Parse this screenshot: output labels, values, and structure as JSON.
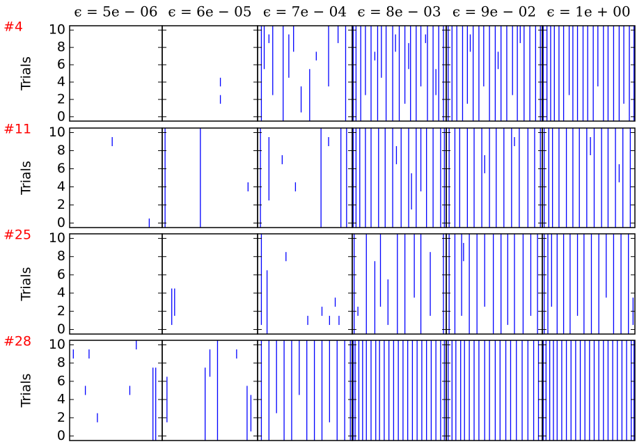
{
  "chart_data": {
    "type": "eventplot",
    "ylabel": "Trials",
    "color": "#0000ff",
    "label_color": "#ff0000",
    "xlim": [
      0,
      100
    ],
    "ylim": [
      -0.5,
      10.5
    ],
    "yticks": [
      0,
      2,
      4,
      6,
      8,
      10
    ],
    "columns": [
      "ϵ = 5e − 06",
      "ϵ = 6e − 05",
      "ϵ = 7e − 04",
      "ϵ = 8e − 03",
      "ϵ = 9e − 02",
      "ϵ = 1e + 00"
    ],
    "rows": [
      {
        "label": "#4",
        "panels": [
          {
            "x": [],
            "from": [],
            "to": []
          },
          {
            "x": [
              61,
              61
            ],
            "from": [
              4,
              2
            ],
            "to": [
              4,
              2
            ]
          },
          {
            "x": [
              4,
              7,
              16,
              27,
              38,
              55,
              75,
              93,
              33,
              62,
              85,
              12,
              46
            ],
            "from": [
              0,
              6,
              3,
              0,
              8,
              0,
              4,
              0,
              5,
              7,
              9,
              9,
              1
            ],
            "to": [
              10,
              10,
              10,
              10,
              10,
              5,
              10,
              10,
              9,
              7,
              10,
              9,
              3
            ]
          },
          {
            "x": [
              1,
              4,
              9,
              14,
              20,
              27,
              31,
              36,
              43,
              50,
              56,
              62,
              68,
              73,
              80,
              86,
              92,
              97,
              24,
              46,
              60,
              78,
              89
            ],
            "from": [
              0,
              0,
              0,
              3,
              0,
              0,
              5,
              0,
              0,
              0,
              2,
              0,
              0,
              4,
              0,
              0,
              0,
              0,
              7,
              8,
              6,
              9,
              3
            ],
            "to": [
              10,
              10,
              10,
              10,
              10,
              10,
              10,
              10,
              10,
              10,
              10,
              10,
              10,
              10,
              10,
              10,
              10,
              10,
              7,
              9,
              8,
              9,
              5
            ]
          },
          {
            "x": [
              2,
              6,
              11,
              17,
              22,
              28,
              34,
              39,
              45,
              51,
              57,
              63,
              69,
              74,
              81,
              87,
              93,
              98,
              25,
              54,
              77
            ],
            "from": [
              0,
              0,
              0,
              0,
              2,
              0,
              0,
              4,
              0,
              0,
              0,
              0,
              3,
              0,
              0,
              0,
              0,
              0,
              8,
              6,
              9
            ],
            "to": [
              10,
              10,
              10,
              10,
              10,
              10,
              10,
              10,
              10,
              10,
              10,
              10,
              10,
              10,
              10,
              10,
              10,
              10,
              9,
              7,
              10
            ]
          },
          {
            "x": [
              1,
              5,
              9,
              13,
              18,
              23,
              29,
              33,
              38,
              44,
              49,
              55,
              60,
              66,
              71,
              77,
              83,
              88,
              94,
              99
            ],
            "from": [
              0,
              0,
              0,
              0,
              0,
              0,
              3,
              0,
              0,
              0,
              0,
              0,
              4,
              0,
              0,
              0,
              0,
              2,
              0,
              0
            ],
            "to": [
              10,
              10,
              10,
              10,
              10,
              10,
              10,
              10,
              10,
              10,
              10,
              10,
              10,
              10,
              10,
              10,
              10,
              10,
              10,
              10
            ]
          }
        ]
      },
      {
        "label": "#11",
        "panels": [
          {
            "x": [
              46,
              86
            ],
            "from": [
              9,
              0
            ],
            "to": [
              9,
              0
            ]
          },
          {
            "x": [
              3,
              40,
              90
            ],
            "from": [
              0,
              0,
              4
            ],
            "to": [
              10,
              10,
              4
            ]
          },
          {
            "x": [
              3,
              12,
              26,
              40,
              67,
              75,
              88,
              94
            ],
            "from": [
              0,
              3,
              7,
              4,
              0,
              9,
              0,
              0
            ],
            "to": [
              10,
              9,
              7,
              4,
              10,
              9,
              10,
              10
            ]
          },
          {
            "x": [
              1,
              4,
              8,
              14,
              20,
              28,
              35,
              43,
              52,
              60,
              68,
              73,
              79,
              86,
              94,
              98,
              47,
              63
            ],
            "from": [
              0,
              0,
              0,
              0,
              0,
              0,
              0,
              0,
              0,
              0,
              0,
              4,
              0,
              0,
              0,
              0,
              7,
              2
            ],
            "to": [
              10,
              10,
              10,
              10,
              10,
              10,
              10,
              10,
              10,
              10,
              10,
              10,
              10,
              10,
              10,
              10,
              8,
              5
            ]
          },
          {
            "x": [
              3,
              9,
              14,
              22,
              29,
              37,
              45,
              52,
              60,
              68,
              76,
              85,
              92,
              98,
              40,
              71
            ],
            "from": [
              0,
              0,
              0,
              0,
              0,
              0,
              0,
              0,
              0,
              0,
              0,
              0,
              0,
              0,
              6,
              9
            ],
            "to": [
              10,
              10,
              10,
              10,
              10,
              10,
              10,
              10,
              10,
              10,
              10,
              10,
              10,
              10,
              7,
              9
            ]
          },
          {
            "x": [
              2,
              7,
              11,
              18,
              26,
              33,
              40,
              48,
              56,
              64,
              71,
              79,
              87,
              95,
              52,
              83
            ],
            "from": [
              0,
              0,
              0,
              0,
              0,
              0,
              0,
              0,
              0,
              0,
              0,
              0,
              0,
              0,
              8,
              5
            ],
            "to": [
              10,
              10,
              10,
              10,
              10,
              10,
              10,
              10,
              10,
              10,
              10,
              10,
              10,
              10,
              9,
              6
            ]
          }
        ]
      },
      {
        "label": "#25",
        "panels": [
          {
            "x": [],
            "from": [],
            "to": []
          },
          {
            "x": [
              10,
              13
            ],
            "from": [
              1,
              2
            ],
            "to": [
              4,
              4
            ]
          },
          {
            "x": [
              4,
              10,
              30,
              68,
              76,
              82,
              86,
              53
            ],
            "from": [
              1,
              0,
              8,
              2,
              1,
              3,
              1,
              1
            ],
            "to": [
              10,
              6,
              8,
              2,
              1,
              3,
              1,
              1
            ]
          },
          {
            "x": [
              2,
              6,
              15,
              24,
              30,
              38,
              48,
              56,
              66,
              73,
              83,
              97
            ],
            "from": [
              0,
              2,
              0,
              0,
              3,
              1,
              0,
              0,
              4,
              0,
              2,
              0
            ],
            "to": [
              10,
              2,
              10,
              7,
              10,
              5,
              10,
              10,
              10,
              10,
              8,
              10
            ]
          },
          {
            "x": [
              3,
              9,
              16,
              24,
              32,
              40,
              49,
              57,
              64,
              71,
              80,
              88,
              95,
              18
            ],
            "from": [
              0,
              0,
              2,
              0,
              0,
              3,
              0,
              0,
              1,
              0,
              0,
              2,
              0,
              8
            ],
            "to": [
              10,
              10,
              10,
              10,
              10,
              10,
              10,
              10,
              10,
              10,
              10,
              10,
              10,
              9
            ]
          },
          {
            "x": [
              2,
              6,
              10,
              16,
              23,
              30,
              38,
              45,
              53,
              61,
              69,
              77,
              85,
              93,
              98
            ],
            "from": [
              0,
              0,
              3,
              0,
              0,
              0,
              2,
              0,
              0,
              0,
              4,
              0,
              0,
              0,
              1
            ],
            "to": [
              10,
              10,
              10,
              10,
              10,
              10,
              10,
              10,
              10,
              10,
              10,
              10,
              10,
              10,
              3
            ]
          }
        ]
      },
      {
        "label": "#28",
        "panels": [
          {
            "x": [
              4,
              21,
              17,
              30,
              72,
              65,
              90,
              93
            ],
            "from": [
              9,
              9,
              5,
              2,
              10,
              5,
              0,
              0
            ],
            "to": [
              9,
              9,
              5,
              2,
              10,
              5,
              7,
              7
            ]
          },
          {
            "x": [
              5,
              45,
              50,
              58,
              78,
              89,
              93
            ],
            "from": [
              2,
              0,
              7,
              0,
              9,
              0,
              1
            ],
            "to": [
              6,
              7,
              9,
              10,
              9,
              5,
              4
            ]
          },
          {
            "x": [
              4,
              12,
              20,
              28,
              36,
              44,
              52,
              60,
              68,
              76,
              84,
              92,
              98
            ],
            "from": [
              0,
              0,
              3,
              0,
              0,
              5,
              0,
              0,
              0,
              2,
              0,
              0,
              0
            ],
            "to": [
              10,
              10,
              10,
              10,
              10,
              10,
              10,
              10,
              10,
              10,
              10,
              10,
              10
            ]
          },
          {
            "x": [
              1,
              3,
              7,
              11,
              15,
              20,
              25,
              29,
              34,
              39,
              44,
              49,
              54,
              59,
              64,
              69,
              74,
              79,
              84,
              89,
              94,
              98
            ],
            "from": [
              0,
              0,
              0,
              0,
              0,
              0,
              0,
              0,
              0,
              0,
              0,
              0,
              0,
              0,
              0,
              0,
              0,
              0,
              0,
              0,
              0,
              0
            ],
            "to": [
              10,
              10,
              10,
              10,
              10,
              10,
              10,
              10,
              10,
              10,
              10,
              10,
              10,
              10,
              10,
              10,
              10,
              10,
              10,
              10,
              10,
              10
            ]
          },
          {
            "x": [
              2,
              6,
              10,
              15,
              19,
              24,
              29,
              34,
              40,
              45,
              51,
              56,
              62,
              67,
              73,
              79,
              85,
              91,
              96
            ],
            "from": [
              0,
              0,
              0,
              0,
              0,
              0,
              0,
              0,
              0,
              0,
              0,
              0,
              0,
              0,
              0,
              0,
              0,
              0,
              0
            ],
            "to": [
              10,
              10,
              10,
              10,
              10,
              10,
              10,
              10,
              10,
              10,
              10,
              10,
              10,
              10,
              10,
              10,
              10,
              10,
              10
            ]
          },
          {
            "x": [
              1,
              4,
              8,
              12,
              16,
              21,
              26,
              31,
              36,
              41,
              46,
              51,
              56,
              61,
              66,
              71,
              76,
              81,
              86,
              91,
              96,
              99
            ],
            "from": [
              0,
              0,
              0,
              0,
              0,
              0,
              0,
              0,
              0,
              0,
              0,
              0,
              0,
              0,
              0,
              0,
              0,
              0,
              0,
              0,
              0,
              0
            ],
            "to": [
              10,
              10,
              10,
              10,
              10,
              10,
              10,
              10,
              10,
              10,
              10,
              10,
              10,
              10,
              10,
              10,
              10,
              10,
              10,
              10,
              10,
              10
            ]
          }
        ]
      }
    ]
  }
}
